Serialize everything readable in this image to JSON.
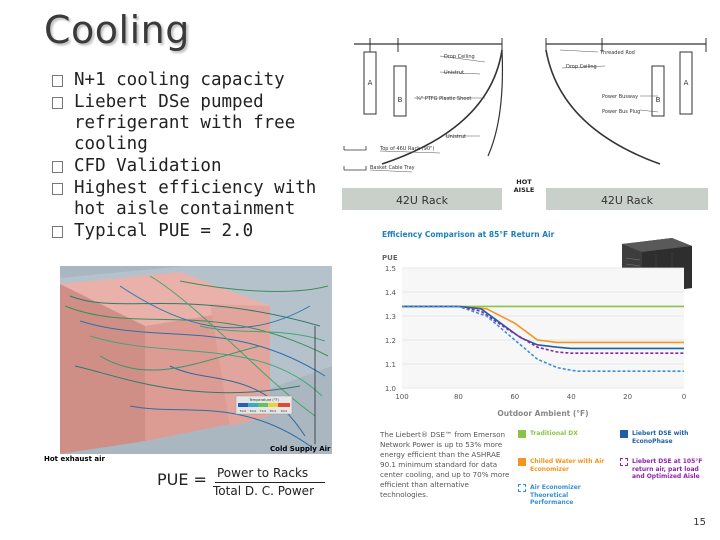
{
  "slide": {
    "title": "Cooling",
    "page_number": "15"
  },
  "bullets": [
    "N+1 cooling capacity",
    "Liebert DSe pumped refrigerant with free cooling",
    "CFD Validation",
    "Highest efficiency with hot aisle containment",
    "Typical PUE = 2.0"
  ],
  "rack_diagram": {
    "left_labels": {
      "drop_ceiling": "Drop Ceiling",
      "unistrut": "Unistrut",
      "ptfe": "¾\" PTFG Plastic Sheet",
      "unistrut2": "Unistrut",
      "top_rack": "Top of 46U Rack (90\")",
      "basket_tray": "Basket Cable Tray"
    },
    "right_labels": {
      "threaded_rod": "Threaded Rod",
      "drop_ceiling": "Drop Ceiling",
      "power_busway": "Power Busway",
      "power_bus_plug": "Power Bus Plug"
    },
    "marker_a": "A",
    "marker_b": "B",
    "rack_left": "42U Rack",
    "rack_right": "42U Rack",
    "hot_aisle": "HOT AISLE"
  },
  "cfd": {
    "cold_caption": "Cold Supply Air",
    "hot_caption": "Hot exhaust air",
    "legend_title": "Temperature (°F)",
    "legend_ticks": [
      "50.0",
      "60.0",
      "70.0",
      "80.0",
      "90.0"
    ]
  },
  "formula": {
    "lhs": "PUE =",
    "numerator": "Power to Racks",
    "denominator": "Total D. C. Power"
  },
  "chart_data": {
    "type": "line",
    "title": "Efficiency Comparison at 85°F Return Air",
    "xlabel": "Outdoor Ambient (°F)",
    "ylabel": "PUE",
    "x": [
      100,
      80,
      60,
      40,
      20,
      0
    ],
    "xlim": [
      100,
      0
    ],
    "ylim": [
      1.0,
      1.5
    ],
    "y_ticks": [
      "1.0",
      "1.1",
      "1.2",
      "1.3",
      "1.4",
      "1.5"
    ],
    "x_ticks": [
      "100",
      "80",
      "60",
      "40",
      "20",
      "0"
    ],
    "grid": true,
    "series": [
      {
        "name": "Traditional DX",
        "color": "#8bc34a",
        "style": "solid",
        "points": [
          [
            100,
            1.34
          ],
          [
            80,
            1.34
          ],
          [
            60,
            1.34
          ],
          [
            40,
            1.34
          ],
          [
            20,
            1.34
          ],
          [
            0,
            1.34
          ]
        ]
      },
      {
        "name": "Chilled Water with Air Economizer",
        "color": "#f7941d",
        "style": "solid",
        "points": [
          [
            100,
            1.34
          ],
          [
            80,
            1.34
          ],
          [
            70,
            1.33
          ],
          [
            60,
            1.27
          ],
          [
            52,
            1.2
          ],
          [
            45,
            1.19
          ],
          [
            40,
            1.19
          ],
          [
            20,
            1.19
          ],
          [
            0,
            1.19
          ]
        ]
      },
      {
        "name": "Liebert DSE with EconoPhase",
        "color": "#1f5fa8",
        "style": "solid",
        "points": [
          [
            100,
            1.34
          ],
          [
            80,
            1.34
          ],
          [
            72,
            1.33
          ],
          [
            65,
            1.27
          ],
          [
            58,
            1.21
          ],
          [
            52,
            1.18
          ],
          [
            45,
            1.17
          ],
          [
            40,
            1.165
          ],
          [
            20,
            1.165
          ],
          [
            0,
            1.165
          ]
        ]
      },
      {
        "name": "Liebert DSE at 105°F return air, part load and Optimized Aisle",
        "color": "#8e24aa",
        "style": "dashed",
        "points": [
          [
            100,
            1.34
          ],
          [
            80,
            1.34
          ],
          [
            72,
            1.32
          ],
          [
            62,
            1.24
          ],
          [
            52,
            1.17
          ],
          [
            45,
            1.15
          ],
          [
            40,
            1.145
          ],
          [
            20,
            1.145
          ],
          [
            0,
            1.145
          ]
        ]
      },
      {
        "name": "Air Economizer Theoretical Performance",
        "color": "#3a8fd9",
        "style": "dashed",
        "points": [
          [
            100,
            1.34
          ],
          [
            80,
            1.34
          ],
          [
            70,
            1.3
          ],
          [
            60,
            1.2
          ],
          [
            52,
            1.12
          ],
          [
            45,
            1.085
          ],
          [
            38,
            1.07
          ],
          [
            20,
            1.07
          ],
          [
            0,
            1.07
          ]
        ]
      }
    ]
  },
  "efficiency_panel": {
    "description": "The Liebert® DSE™ from Emerson Network Power is up to 53% more energy efficient than the ASHRAE 90.1 minimum standard for data center cooling, and up to 70% more efficient than alternative technologies.",
    "legend": [
      {
        "label": "Traditional DX",
        "color": "#8bc34a",
        "style": "solid"
      },
      {
        "label": "Liebert DSE with EconoPhase",
        "color": "#1f5fa8",
        "style": "solid"
      },
      {
        "label": "Chilled Water with Air Economizer",
        "color": "#f7941d",
        "style": "solid"
      },
      {
        "label": "Liebert DSE at 105°F return air, part load and Optimized Aisle",
        "color": "#8e24aa",
        "style": "dashed"
      },
      {
        "label": "Air Economizer Theoretical Performance",
        "color": "#3a8fd9",
        "style": "dashed"
      }
    ]
  }
}
